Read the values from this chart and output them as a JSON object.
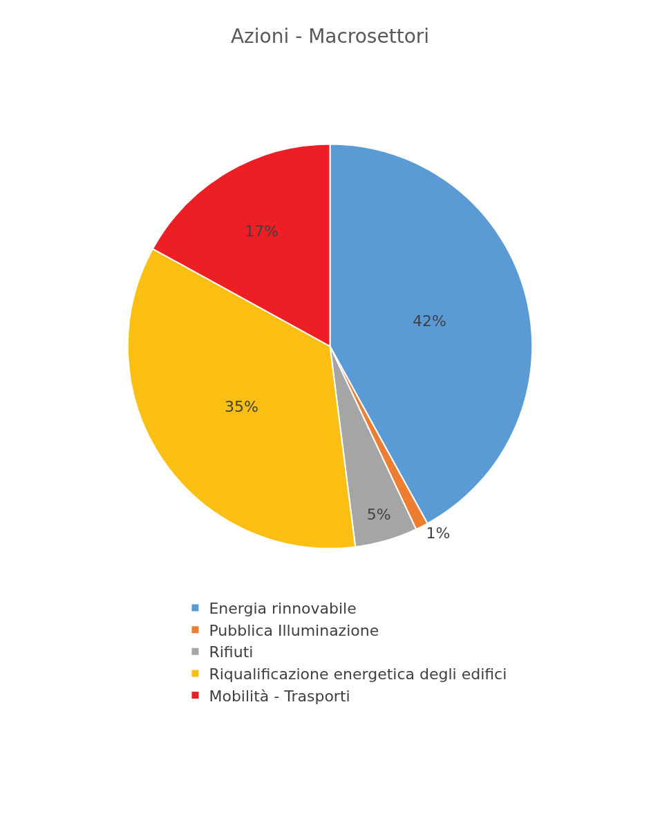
{
  "chart_data": {
    "type": "pie",
    "title": "Azioni - Macrosettori",
    "categories": [
      "Energia rinnovabile",
      "Pubblica Illuminazione",
      "Rifiuti",
      "Riqualificazione energetica degli edifici",
      "Mobilità - Trasporti"
    ],
    "values": [
      42,
      1,
      5,
      35,
      17
    ],
    "value_labels": [
      "42%",
      "1%",
      "5%",
      "35%",
      "17%"
    ],
    "colors": [
      "#5b9bd5",
      "#ed7d31",
      "#a5a5a5",
      "#fbbf14",
      "#ee1f24"
    ],
    "legend": "bottom"
  }
}
